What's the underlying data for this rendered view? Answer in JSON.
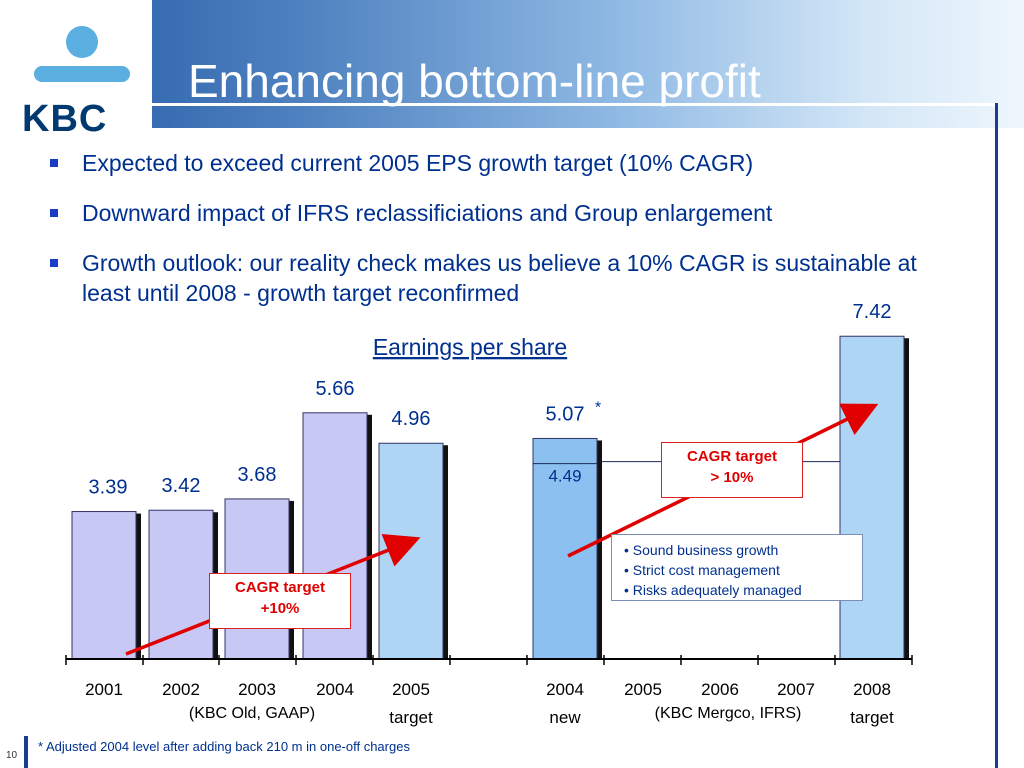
{
  "header": {
    "title": "Enhancing bottom-line profit",
    "logo_text": "KBC",
    "logo_icon": "kbc-figure-icon"
  },
  "bullets": [
    "Expected to exceed current 2005 EPS growth target (10% CAGR)",
    "Downward impact of IFRS reclassificiations and Group enlargement",
    "Growth outlook: our reality check makes us believe a 10% CAGR is sustainable at least until 2008 - growth target reconfirmed"
  ],
  "cagr_left": {
    "line1": "CAGR target",
    "line2": "+10%"
  },
  "cagr_right": {
    "line1": "CAGR target",
    "line2": "> 10%"
  },
  "notes": [
    "• Sound business growth",
    "• Strict cost management",
    "• Risks adequately managed"
  ],
  "footnote": "* Adjusted 2004 level after adding back 210 m in one-off charges",
  "page_number": "10",
  "colors": {
    "lavender_bar": "#c8c8f5",
    "light_blue_bar": "#aed6f4",
    "mid_blue_bar": "#8cc0f0",
    "text_blue": "#00308f",
    "arrow_red": "#e00000"
  },
  "chart_data": {
    "type": "bar",
    "title": "Earnings per share",
    "categories": [
      "2001",
      "2002",
      "2003",
      "2004",
      "2005",
      "2004",
      "2005",
      "2006",
      "2007",
      "2008"
    ],
    "category_sublabels": [
      "",
      "",
      "",
      "",
      "target",
      "new",
      "",
      "",
      "",
      "target"
    ],
    "values": [
      3.39,
      3.42,
      3.68,
      5.66,
      4.96,
      5.07,
      null,
      null,
      null,
      7.42
    ],
    "value_labels": [
      "3.39",
      "3.42",
      "3.68",
      "5.66",
      "4.96",
      "5.07",
      "",
      "",
      "",
      "7.42"
    ],
    "value_label_marks": [
      "",
      "",
      "",
      "",
      "",
      "*",
      "",
      "",
      "",
      ""
    ],
    "inner_values": [
      null,
      null,
      null,
      null,
      null,
      4.49,
      null,
      null,
      null,
      null
    ],
    "inner_value_labels": [
      "",
      "",
      "",
      "",
      "",
      "4.49",
      "",
      "",
      "",
      ""
    ],
    "bar_color_keys": [
      "lavender_bar",
      "lavender_bar",
      "lavender_bar",
      "lavender_bar",
      "light_blue_bar",
      "mid_blue_bar",
      null,
      null,
      null,
      "light_blue_bar"
    ],
    "groups": [
      {
        "label": "(KBC Old, GAAP)"
      },
      {
        "label": "(KBC Mergco, IFRS)"
      }
    ],
    "reference_line": 4.49,
    "grid": false,
    "legend": "none"
  }
}
